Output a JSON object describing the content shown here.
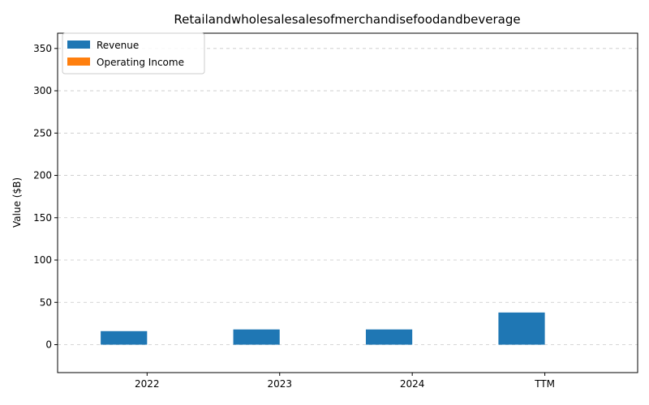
{
  "chart_data": {
    "type": "bar",
    "title": "Retailandwholesalesalesofmerchandisefoodandbeverage",
    "xlabel": "",
    "ylabel": "Value ($B)",
    "categories": [
      "2022",
      "2023",
      "2024",
      "TTM"
    ],
    "series": [
      {
        "name": "Revenue",
        "color": "#1f77b4",
        "values": [
          16,
          18,
          18,
          38
        ]
      },
      {
        "name": "Operating Income",
        "color": "#ff7f0e",
        "values": [
          0,
          0,
          0,
          0
        ]
      }
    ],
    "ylim": [
      -33,
      368
    ],
    "yticks": [
      0,
      50,
      100,
      150,
      200,
      250,
      300,
      350
    ],
    "ytick_labels": [
      "0",
      "50",
      "100",
      "150",
      "200",
      "250",
      "300",
      "350"
    ],
    "grid": "y-dashed",
    "legend_position": "top-left"
  }
}
